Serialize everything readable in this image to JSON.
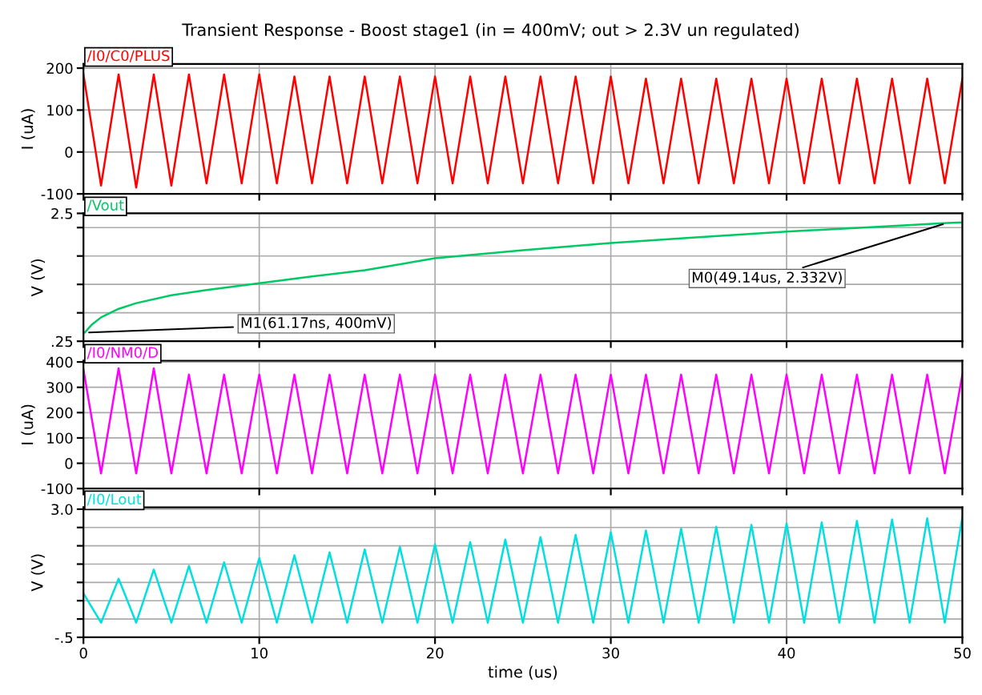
{
  "chart_data": [
    {
      "type": "line",
      "title": "Transient Response - Boost stage1 (in = 400mV; out > 2.3V un regulated)",
      "ylabel": "I (uA)",
      "xlim": [
        0,
        50
      ],
      "xticks": [
        0,
        10,
        20,
        30,
        40,
        50
      ],
      "ylim": [
        -100,
        210
      ],
      "yticks": [
        -100,
        0,
        100,
        200
      ],
      "grid": true,
      "legend": "top left",
      "tick_labels": "y",
      "marker": "none",
      "line_style": "solid",
      "x": [
        0,
        1,
        2,
        3,
        4,
        5,
        6,
        7,
        8,
        9,
        10,
        11,
        12,
        13,
        14,
        15,
        16,
        17,
        18,
        19,
        20,
        21,
        22,
        23,
        24,
        25,
        26,
        27,
        28,
        29,
        30,
        31,
        32,
        33,
        34,
        35,
        36,
        37,
        38,
        39,
        40,
        41,
        42,
        43,
        44,
        45,
        46,
        47,
        48,
        49,
        50
      ],
      "series": [
        {
          "name": "/I0/C0/PLUS",
          "color": "#ff0000",
          "values": [
            185,
            -80,
            185,
            -85,
            185,
            -80,
            185,
            -75,
            185,
            -75,
            185,
            -75,
            180,
            -75,
            180,
            -75,
            180,
            -75,
            180,
            -75,
            180,
            -75,
            180,
            -75,
            180,
            -75,
            180,
            -75,
            180,
            -75,
            180,
            -75,
            175,
            -75,
            175,
            -75,
            175,
            -75,
            175,
            -75,
            175,
            -75,
            175,
            -75,
            175,
            -75,
            175,
            -75,
            175,
            -75,
            175
          ]
        }
      ]
    },
    {
      "type": "line",
      "ylabel": "V (V)",
      "xlim": [
        0,
        50
      ],
      "xticks": [
        0,
        10,
        20,
        30,
        40,
        50
      ],
      "ylim": [
        0.25,
        2.5
      ],
      "yticks": [
        {
          "value": 0.25,
          "label": ".25"
        },
        {
          "value": 0.75,
          "label": null
        },
        {
          "value": 1.25,
          "label": null
        },
        {
          "value": 1.75,
          "label": null
        },
        {
          "value": 2.25,
          "label": null
        },
        {
          "value": 2.5,
          "label": "2.5"
        }
      ],
      "grid": true,
      "legend": "top left",
      "tick_labels": "y",
      "marker": "none",
      "line_style": "solid",
      "x": [
        0.06117,
        0.5,
        1,
        2,
        3,
        5,
        7,
        10,
        13,
        16,
        20,
        25,
        30,
        35,
        40,
        45,
        49.14,
        50
      ],
      "series": [
        {
          "name": "/Vout",
          "color": "#00c864",
          "values": [
            0.4,
            0.55,
            0.67,
            0.82,
            0.92,
            1.06,
            1.15,
            1.27,
            1.39,
            1.5,
            1.71,
            1.85,
            1.98,
            2.08,
            2.18,
            2.26,
            2.33,
            2.34
          ]
        }
      ],
      "annotations": [
        {
          "text": "M1(61.17ns, 400mV)",
          "x": 0.06117,
          "y": 0.4
        },
        {
          "text": "M0(49.14us, 2.332V)",
          "x": 49.14,
          "y": 2.332
        }
      ]
    },
    {
      "type": "line",
      "ylabel": "I (uA)",
      "xlim": [
        0,
        50
      ],
      "xticks": [
        0,
        10,
        20,
        30,
        40,
        50
      ],
      "ylim": [
        -100,
        405
      ],
      "yticks": [
        -100,
        0,
        100,
        200,
        300,
        400
      ],
      "grid": true,
      "legend": "top left",
      "tick_labels": "y",
      "marker": "none",
      "line_style": "solid",
      "x": [
        0,
        1,
        2,
        3,
        4,
        5,
        6,
        7,
        8,
        9,
        10,
        11,
        12,
        13,
        14,
        15,
        16,
        17,
        18,
        19,
        20,
        21,
        22,
        23,
        24,
        25,
        26,
        27,
        28,
        29,
        30,
        31,
        32,
        33,
        34,
        35,
        36,
        37,
        38,
        39,
        40,
        41,
        42,
        43,
        44,
        45,
        46,
        47,
        48,
        49,
        50
      ],
      "series": [
        {
          "name": "/I0/NM0/D",
          "color": "#ff00ff",
          "values": [
            370,
            -40,
            375,
            -40,
            375,
            -40,
            350,
            -40,
            350,
            -40,
            350,
            -40,
            350,
            -40,
            350,
            -40,
            350,
            -40,
            350,
            -40,
            350,
            -40,
            350,
            -40,
            350,
            -40,
            350,
            -40,
            350,
            -40,
            350,
            -40,
            350,
            -40,
            350,
            -40,
            350,
            -40,
            350,
            -40,
            350,
            -40,
            350,
            -40,
            350,
            -40,
            350,
            -40,
            350,
            -40,
            350
          ]
        }
      ]
    },
    {
      "type": "line",
      "xlabel": "time (us)",
      "ylabel": "V (V)",
      "xlim": [
        0,
        50
      ],
      "xticks": [
        0,
        10,
        20,
        30,
        40,
        50
      ],
      "ylim": [
        -0.5,
        3.05
      ],
      "yticks": [
        {
          "value": -0.5,
          "label": "-.5"
        },
        {
          "value": 0,
          "label": null
        },
        {
          "value": 0.5,
          "label": null
        },
        {
          "value": 1.0,
          "label": null
        },
        {
          "value": 1.5,
          "label": null
        },
        {
          "value": 2.0,
          "label": null
        },
        {
          "value": 2.5,
          "label": null
        },
        {
          "value": 3.0,
          "label": "3.0"
        }
      ],
      "grid": true,
      "legend": "top left",
      "marker": "none",
      "line_style": "solid",
      "x": [
        0,
        1,
        2,
        3,
        4,
        5,
        6,
        7,
        8,
        9,
        10,
        11,
        12,
        13,
        14,
        15,
        16,
        17,
        18,
        19,
        20,
        21,
        22,
        23,
        24,
        25,
        26,
        27,
        28,
        29,
        30,
        31,
        32,
        33,
        34,
        35,
        36,
        37,
        38,
        39,
        40,
        41,
        42,
        43,
        44,
        45,
        46,
        47,
        48,
        49,
        50
      ],
      "series": [
        {
          "name": "/I0/Lout",
          "color": "#00e0e0",
          "values": [
            0.7,
            -0.1,
            1.1,
            -0.1,
            1.35,
            -0.1,
            1.45,
            -0.1,
            1.55,
            -0.1,
            1.66,
            -0.1,
            1.74,
            -0.1,
            1.82,
            -0.1,
            1.9,
            -0.1,
            1.97,
            -0.1,
            2.04,
            -0.1,
            2.1,
            -0.1,
            2.17,
            -0.1,
            2.24,
            -0.1,
            2.3,
            -0.1,
            2.37,
            -0.1,
            2.42,
            -0.1,
            2.47,
            -0.1,
            2.52,
            -0.1,
            2.57,
            -0.1,
            2.61,
            -0.1,
            2.64,
            -0.1,
            2.68,
            -0.1,
            2.72,
            -0.1,
            2.75,
            -0.1,
            2.78
          ]
        }
      ]
    }
  ]
}
